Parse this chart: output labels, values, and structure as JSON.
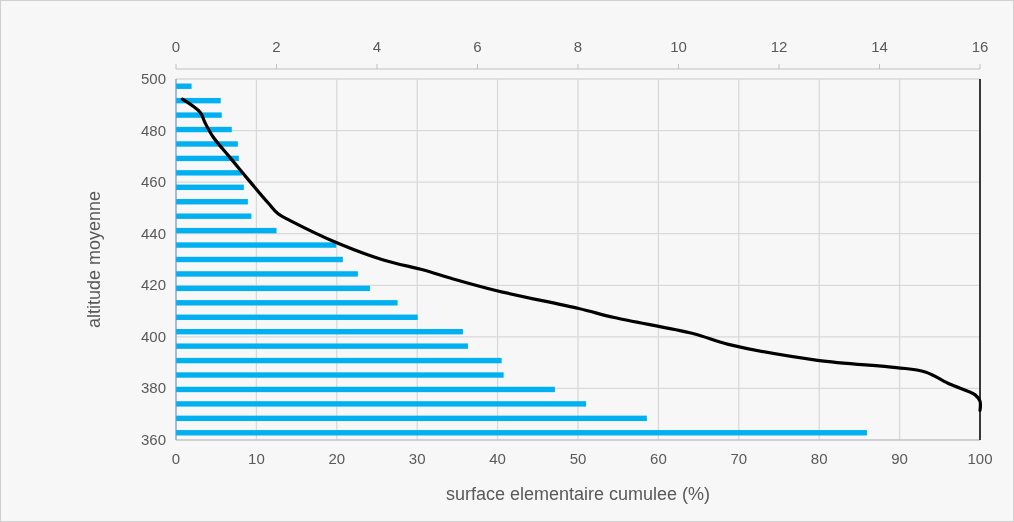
{
  "chart_data": {
    "type": "bar",
    "orientation": "horizontal",
    "xlabel": "surface elementaire cumulee (%)",
    "ylabel": "altitude moyenne",
    "xlim": [
      0,
      100
    ],
    "xticks": [
      0,
      10,
      20,
      30,
      40,
      50,
      60,
      70,
      80,
      90,
      100
    ],
    "x2lim": [
      0,
      16
    ],
    "x2ticks": [
      0,
      2,
      4,
      6,
      8,
      10,
      12,
      14,
      16
    ],
    "ylim": [
      360,
      500
    ],
    "yticks": [
      360,
      380,
      400,
      420,
      440,
      460,
      480,
      500
    ],
    "grid": true,
    "series": [
      {
        "axis": "x2",
        "color": "#00b0f0",
        "x": [
          497.2,
          491.6,
          486.0,
          480.4,
          474.8,
          469.2,
          463.6,
          458.0,
          452.4,
          446.8,
          441.2,
          435.6,
          430.0,
          424.4,
          418.8,
          413.2,
          407.6,
          402.0,
          396.4,
          390.8,
          385.2,
          379.6,
          374.0,
          368.4,
          362.8
        ],
        "values": [
          0.31,
          0.89,
          0.91,
          1.11,
          1.23,
          1.25,
          1.31,
          1.35,
          1.43,
          1.5,
          2.0,
          3.19,
          3.32,
          3.62,
          3.86,
          4.41,
          4.81,
          5.71,
          5.81,
          6.48,
          6.52,
          7.54,
          8.16,
          9.37,
          13.75
        ]
      },
      {
        "type": "line",
        "color": "#000000",
        "x": [
          492.2,
          487.1,
          483.1,
          477.6,
          469.6,
          460.2,
          451.8,
          447.7,
          445.1,
          436.5,
          429.8,
          425.9,
          422.8,
          417.9,
          411.0,
          407.5,
          401.3,
          397.1,
          390.9,
          388.1,
          386.4,
          381.6,
          377.5,
          375.0,
          371.5
        ],
        "values": [
          0.8,
          3.0,
          3.6,
          4.6,
          6.7,
          9.2,
          11.5,
          12.7,
          14.2,
          20.0,
          25.8,
          30.8,
          34.1,
          39.9,
          50.1,
          54.5,
          64.3,
          68.7,
          79.8,
          89.6,
          93.2,
          96.3,
          99.4,
          100,
          100
        ]
      }
    ]
  }
}
